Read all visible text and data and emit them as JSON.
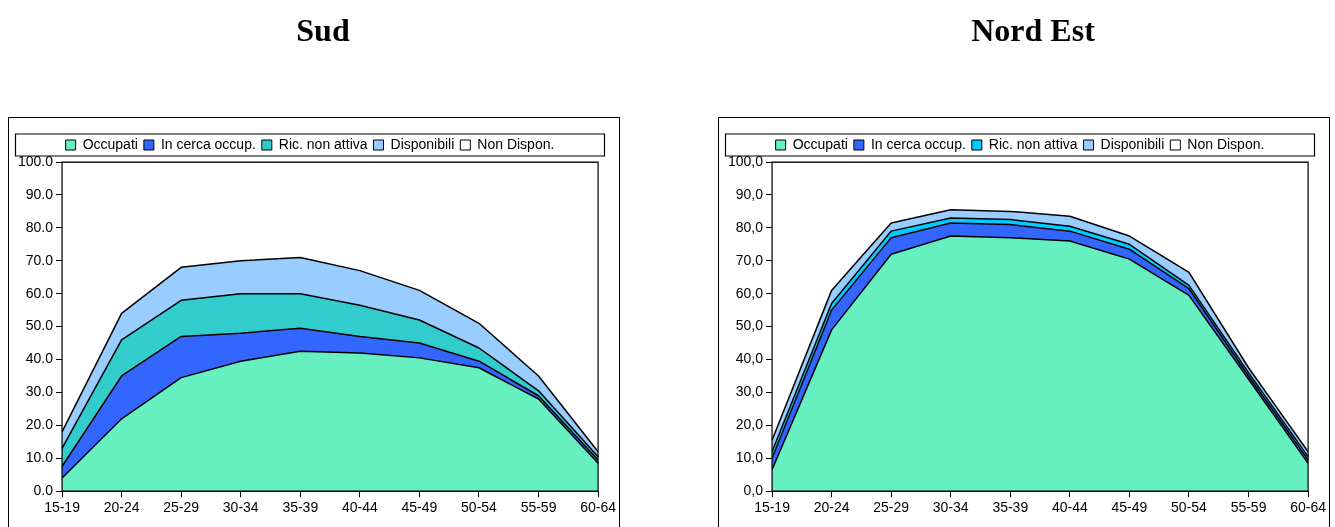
{
  "chart_data": [
    {
      "type": "area",
      "title": "Sud",
      "stacked": true,
      "legend": "top",
      "grid": false,
      "categories": [
        "15-19",
        "20-24",
        "25-29",
        "30-34",
        "35-39",
        "40-44",
        "45-49",
        "50-54",
        "55-59",
        "60-64"
      ],
      "ylim": [
        0,
        100
      ],
      "yticks": [
        {
          "value": 0,
          "label": "0.0"
        },
        {
          "value": 10,
          "label": "10.0"
        },
        {
          "value": 20,
          "label": "20.0"
        },
        {
          "value": 30,
          "label": "30.0"
        },
        {
          "value": 40,
          "label": "40.0"
        },
        {
          "value": 50,
          "label": "50.0"
        },
        {
          "value": 60,
          "label": "60.0"
        },
        {
          "value": 70,
          "label": "70.0"
        },
        {
          "value": 80,
          "label": "80.0"
        },
        {
          "value": 90,
          "label": "90.0"
        },
        {
          "value": 100,
          "label": "100.0"
        }
      ],
      "series": [
        {
          "name": "Occupati",
          "color": "#66f0c0",
          "values": [
            4,
            22,
            34.5,
            39.5,
            42.5,
            42,
            40.5,
            37.5,
            28,
            8.5
          ]
        },
        {
          "name": "In cerca occup.",
          "color": "#3366ff",
          "values": [
            3.5,
            13,
            12.5,
            8.5,
            7,
            5,
            4.5,
            2,
            1,
            1
          ]
        },
        {
          "name": "Ric. non attiva",
          "color": "#33cccc",
          "values": [
            5.5,
            11,
            11,
            12,
            10.5,
            9.5,
            7,
            4,
            1.5,
            1
          ]
        },
        {
          "name": "Disponibili",
          "color": "#99ccff",
          "values": [
            5,
            8,
            10,
            10,
            11,
            10.5,
            9,
            7.5,
            4.5,
            1.5
          ]
        },
        {
          "name": "Non Dispon.",
          "color": "#ffffff",
          "values": [
            82,
            46,
            32,
            30,
            29,
            33,
            39,
            49,
            65,
            88
          ]
        }
      ]
    },
    {
      "type": "area",
      "title": "Nord Est",
      "stacked": true,
      "legend": "top",
      "grid": false,
      "categories": [
        "15-19",
        "20-24",
        "25-29",
        "30-34",
        "35-39",
        "40-44",
        "45-49",
        "50-54",
        "55-59",
        "60-64"
      ],
      "ylim": [
        0,
        100
      ],
      "yticks": [
        {
          "value": 0,
          "label": "0,0"
        },
        {
          "value": 10,
          "label": "10,0"
        },
        {
          "value": 20,
          "label": "20,0"
        },
        {
          "value": 30,
          "label": "30,0"
        },
        {
          "value": 40,
          "label": "40,0"
        },
        {
          "value": 50,
          "label": "50,0"
        },
        {
          "value": 60,
          "label": "60,0"
        },
        {
          "value": 70,
          "label": "70,0"
        },
        {
          "value": 80,
          "label": "80,0"
        },
        {
          "value": 90,
          "label": "90,0"
        },
        {
          "value": 100,
          "label": "100,0"
        }
      ],
      "series": [
        {
          "name": "Occupati",
          "color": "#66f0c0",
          "values": [
            6.5,
            49,
            72,
            77.5,
            77,
            76,
            70.5,
            59.5,
            34,
            8.5
          ]
        },
        {
          "name": "In cerca occup.",
          "color": "#3366ff",
          "values": [
            3.5,
            6,
            5,
            4,
            4,
            3,
            3,
            2,
            1,
            1
          ]
        },
        {
          "name": "Ric. non attiva",
          "color": "#00ccff",
          "values": [
            2,
            2,
            2,
            1.5,
            1.5,
            1.5,
            1.5,
            1,
            1,
            1
          ]
        },
        {
          "name": "Disponibili",
          "color": "#99ccff",
          "values": [
            3.5,
            4,
            2.5,
            2.5,
            2.5,
            3,
            2.5,
            4,
            1.5,
            1.5
          ]
        },
        {
          "name": "Non Dispon.",
          "color": "#ffffff",
          "values": [
            84.5,
            39,
            18.5,
            14.5,
            15,
            16.5,
            22.5,
            33.5,
            62.5,
            88
          ]
        }
      ]
    }
  ]
}
